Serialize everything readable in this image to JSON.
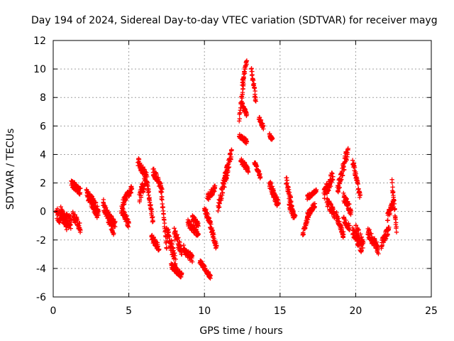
{
  "chart_data": {
    "type": "scatter",
    "title": "Day 194 of 2024, Sidereal Day-to-day VTEC variation (SDTVAR) for receiver mayg",
    "xlabel": "GPS time / hours",
    "ylabel": "SDTVAR / TECUs",
    "xlim": [
      0,
      25
    ],
    "ylim": [
      -6,
      12
    ],
    "xticks": [
      "0",
      "5",
      "10",
      "15",
      "20",
      "25"
    ],
    "yticks": [
      "-6",
      "-4",
      "-2",
      "0",
      "2",
      "4",
      "6",
      "8",
      "10",
      "12"
    ],
    "grid": true,
    "marker": "+",
    "colors": {
      "series": "#ff0000",
      "grid": "#a0a0a0",
      "axis": "#000000"
    },
    "series": [
      {
        "name": "SDTVAR",
        "segments": [
          {
            "x": [
              0.2,
              1.2
            ],
            "y": [
              -0.2,
              -0.8
            ],
            "spread": 0.9
          },
          {
            "x": [
              0.5,
              0.9
            ],
            "y": [
              0.2,
              -1.2
            ],
            "spread": 0.6
          },
          {
            "x": [
              1.2,
              1.8
            ],
            "y": [
              2.0,
              1.4
            ],
            "spread": 0.5
          },
          {
            "x": [
              1.3,
              1.8
            ],
            "y": [
              -0.2,
              -1.2
            ],
            "spread": 0.6
          },
          {
            "x": [
              2.2,
              3.0
            ],
            "y": [
              1.3,
              0.0
            ],
            "spread": 0.8
          },
          {
            "x": [
              2.5,
              2.9
            ],
            "y": [
              0.6,
              -0.2
            ],
            "spread": 0.5
          },
          {
            "x": [
              3.3,
              4.0
            ],
            "y": [
              0.5,
              -1.3
            ],
            "spread": 0.8
          },
          {
            "x": [
              3.6,
              4.1
            ],
            "y": [
              -0.2,
              -1.0
            ],
            "spread": 0.6
          },
          {
            "x": [
              4.5,
              5.0
            ],
            "y": [
              0.2,
              -0.9
            ],
            "spread": 0.6
          },
          {
            "x": [
              4.6,
              5.2
            ],
            "y": [
              0.6,
              1.6
            ],
            "spread": 0.5
          },
          {
            "x": [
              5.6,
              6.1
            ],
            "y": [
              3.5,
              2.6
            ],
            "spread": 0.6
          },
          {
            "x": [
              5.7,
              6.2
            ],
            "y": [
              1.0,
              2.5
            ],
            "spread": 0.8
          },
          {
            "x": [
              6.2,
              6.6
            ],
            "y": [
              2.1,
              -0.8
            ],
            "spread": 0.5
          },
          {
            "x": [
              6.5,
              7.0
            ],
            "y": [
              -1.8,
              -2.6
            ],
            "spread": 0.5
          },
          {
            "x": [
              6.6,
              7.2
            ],
            "y": [
              2.8,
              1.6
            ],
            "spread": 0.6
          },
          {
            "x": [
              7.1,
              7.5
            ],
            "y": [
              1.8,
              -2.5
            ],
            "spread": 0.5
          },
          {
            "x": [
              7.5,
              8.1
            ],
            "y": [
              -1.2,
              -3.6
            ],
            "spread": 0.9
          },
          {
            "x": [
              7.8,
              8.5
            ],
            "y": [
              -3.8,
              -4.5
            ],
            "spread": 0.4
          },
          {
            "x": [
              8.0,
              8.5
            ],
            "y": [
              -1.5,
              -2.8
            ],
            "spread": 0.8
          },
          {
            "x": [
              8.6,
              9.2
            ],
            "y": [
              -2.6,
              -3.3
            ],
            "spread": 0.6
          },
          {
            "x": [
              8.9,
              9.6
            ],
            "y": [
              -0.8,
              -1.6
            ],
            "spread": 0.5
          },
          {
            "x": [
              9.2,
              9.6
            ],
            "y": [
              -0.4,
              -1.0
            ],
            "spread": 0.4
          },
          {
            "x": [
              9.7,
              10.4
            ],
            "y": [
              -3.5,
              -4.6
            ],
            "spread": 0.3
          },
          {
            "x": [
              10.0,
              10.4
            ],
            "y": [
              0.2,
              -1.0
            ],
            "spread": 0.6
          },
          {
            "x": [
              10.2,
              10.7
            ],
            "y": [
              1.0,
              1.6
            ],
            "spread": 0.5
          },
          {
            "x": [
              10.4,
              10.8
            ],
            "y": [
              -1.0,
              -2.6
            ],
            "spread": 0.5
          },
          {
            "x": [
              10.9,
              11.5
            ],
            "y": [
              0.2,
              3.0
            ],
            "spread": 0.8
          },
          {
            "x": [
              11.3,
              11.8
            ],
            "y": [
              2.0,
              4.1
            ],
            "spread": 0.8
          },
          {
            "x": [
              12.3,
              12.6
            ],
            "y": [
              6.5,
              9.2
            ],
            "spread": 0.5
          },
          {
            "x": [
              12.5,
              12.8
            ],
            "y": [
              9.0,
              10.6
            ],
            "spread": 0.4
          },
          {
            "x": [
              12.3,
              12.8
            ],
            "y": [
              5.3,
              4.9
            ],
            "spread": 0.3
          },
          {
            "x": [
              12.4,
              12.9
            ],
            "y": [
              3.6,
              2.9
            ],
            "spread": 0.4
          },
          {
            "x": [
              12.5,
              12.8
            ],
            "y": [
              7.5,
              6.8
            ],
            "spread": 0.3
          },
          {
            "x": [
              13.1,
              13.4
            ],
            "y": [
              10.0,
              7.8
            ],
            "spread": 0.6
          },
          {
            "x": [
              13.3,
              13.7
            ],
            "y": [
              3.5,
              2.4
            ],
            "spread": 0.3
          },
          {
            "x": [
              13.6,
              13.9
            ],
            "y": [
              6.6,
              5.9
            ],
            "spread": 0.3
          },
          {
            "x": [
              14.3,
              14.5
            ],
            "y": [
              5.4,
              5.0
            ],
            "spread": 0.3
          },
          {
            "x": [
              14.3,
              14.8
            ],
            "y": [
              2.0,
              0.6
            ],
            "spread": 0.6
          },
          {
            "x": [
              14.5,
              14.9
            ],
            "y": [
              1.4,
              0.5
            ],
            "spread": 0.5
          },
          {
            "x": [
              15.4,
              15.9
            ],
            "y": [
              2.2,
              -0.3
            ],
            "spread": 0.7
          },
          {
            "x": [
              15.6,
              16.0
            ],
            "y": [
              0.4,
              -0.4
            ],
            "spread": 0.4
          },
          {
            "x": [
              16.5,
              16.9
            ],
            "y": [
              -1.6,
              -0.2
            ],
            "spread": 0.4
          },
          {
            "x": [
              16.8,
              17.3
            ],
            "y": [
              -0.3,
              0.5
            ],
            "spread": 0.4
          },
          {
            "x": [
              16.8,
              17.4
            ],
            "y": [
              1.0,
              1.4
            ],
            "spread": 0.3
          },
          {
            "x": [
              17.9,
              18.5
            ],
            "y": [
              1.2,
              2.5
            ],
            "spread": 0.8
          },
          {
            "x": [
              18.1,
              18.6
            ],
            "y": [
              0.7,
              -0.2
            ],
            "spread": 0.6
          },
          {
            "x": [
              18.7,
              19.2
            ],
            "y": [
              -0.2,
              -1.7
            ],
            "spread": 0.5
          },
          {
            "x": [
              18.8,
              19.5
            ],
            "y": [
              1.5,
              4.4
            ],
            "spread": 0.8
          },
          {
            "x": [
              19.2,
              19.7
            ],
            "y": [
              1.0,
              0.0
            ],
            "spread": 0.6
          },
          {
            "x": [
              19.2,
              19.6
            ],
            "y": [
              -0.5,
              -1.2
            ],
            "spread": 0.5
          },
          {
            "x": [
              19.8,
              20.3
            ],
            "y": [
              3.6,
              1.0
            ],
            "spread": 0.5
          },
          {
            "x": [
              19.8,
              20.4
            ],
            "y": [
              -1.4,
              -2.6
            ],
            "spread": 0.7
          },
          {
            "x": [
              20.0,
              20.5
            ],
            "y": [
              -1.2,
              -2.4
            ],
            "spread": 0.8
          },
          {
            "x": [
              20.8,
              21.5
            ],
            "y": [
              -1.4,
              -2.7
            ],
            "spread": 0.7
          },
          {
            "x": [
              21.7,
              22.2
            ],
            "y": [
              -2.3,
              -1.2
            ],
            "spread": 0.6
          },
          {
            "x": [
              22.1,
              22.5
            ],
            "y": [
              -0.4,
              0.6
            ],
            "spread": 0.6
          },
          {
            "x": [
              22.4,
              22.7
            ],
            "y": [
              2.0,
              -1.3
            ],
            "spread": 0.6
          }
        ]
      }
    ]
  }
}
